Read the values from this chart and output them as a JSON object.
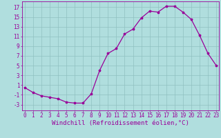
{
  "x": [
    0,
    1,
    2,
    3,
    4,
    5,
    6,
    7,
    8,
    9,
    10,
    11,
    12,
    13,
    14,
    15,
    16,
    17,
    18,
    19,
    20,
    21,
    22,
    23
  ],
  "y": [
    0.5,
    -0.5,
    -1.2,
    -1.5,
    -1.8,
    -2.5,
    -2.7,
    -2.7,
    -0.8,
    4.0,
    7.5,
    8.5,
    11.5,
    12.5,
    14.8,
    16.2,
    16.0,
    17.2,
    17.2,
    16.0,
    14.5,
    11.2,
    7.5,
    5.0
  ],
  "line_color": "#990099",
  "marker": "*",
  "marker_size": 2.5,
  "background_color": "#b0dede",
  "grid_color": "#90c0c0",
  "xlabel": "Windchill (Refroidissement éolien,°C)",
  "xlabel_fontsize": 6.5,
  "yticks": [
    -3,
    -1,
    1,
    3,
    5,
    7,
    9,
    11,
    13,
    15,
    17
  ],
  "xticks": [
    0,
    1,
    2,
    3,
    4,
    5,
    6,
    7,
    8,
    9,
    10,
    11,
    12,
    13,
    14,
    15,
    16,
    17,
    18,
    19,
    20,
    21,
    22,
    23
  ],
  "xlim": [
    -0.3,
    23.3
  ],
  "ylim": [
    -4.2,
    18.2
  ],
  "tick_fontsize": 5.5,
  "linewidth": 0.9
}
